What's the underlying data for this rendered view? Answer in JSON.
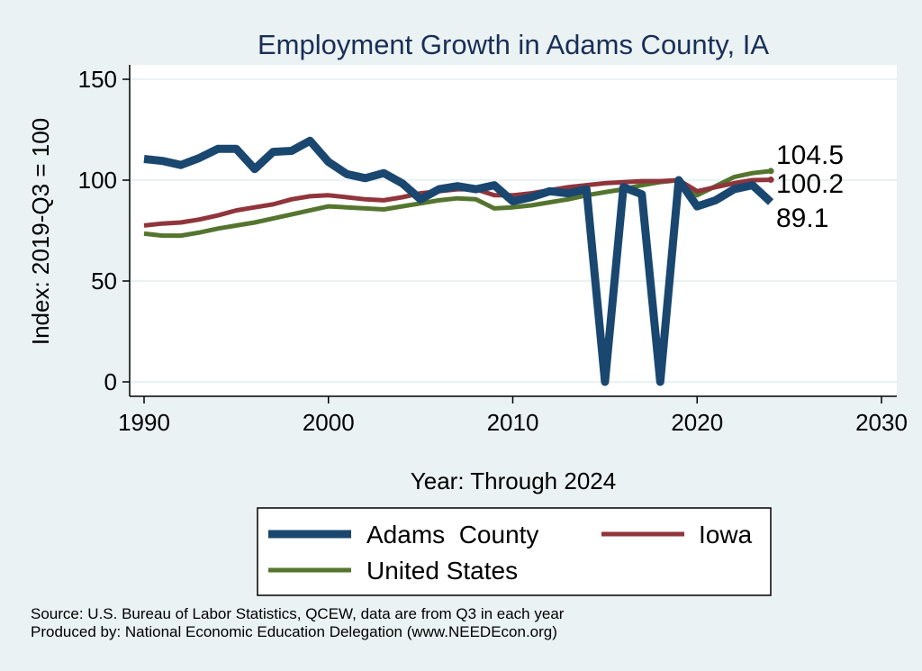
{
  "chart_data": {
    "type": "line",
    "title": "Employment Growth in Adams County, IA",
    "xlabel": "Year: Through 2024",
    "ylabel": "Index: 2019-Q3 = 100",
    "xlim": [
      1990,
      2030
    ],
    "ylim": [
      0,
      150
    ],
    "x_ticks": [
      1990,
      2000,
      2010,
      2020,
      2030
    ],
    "y_ticks": [
      0,
      50,
      100,
      150
    ],
    "grid": true,
    "legend_position": "bottom",
    "x": [
      1990,
      1991,
      1992,
      1993,
      1994,
      1995,
      1996,
      1997,
      1998,
      1999,
      2000,
      2001,
      2002,
      2003,
      2004,
      2005,
      2006,
      2007,
      2008,
      2009,
      2010,
      2011,
      2012,
      2013,
      2014,
      2015,
      2016,
      2017,
      2018,
      2019,
      2020,
      2021,
      2022,
      2023,
      2024
    ],
    "series": [
      {
        "name": "Adams  County",
        "color": "#1a476f",
        "values": [
          110.5,
          109.5,
          107.5,
          111,
          115.5,
          115.5,
          105.5,
          114,
          114.5,
          119.5,
          109,
          103,
          101,
          103.5,
          98.5,
          90.5,
          95.5,
          97,
          95.5,
          97.5,
          89.5,
          91.5,
          94.5,
          93.5,
          95.5,
          0,
          96.5,
          93,
          0,
          100,
          87,
          90,
          95.5,
          97.5,
          89.1
        ],
        "end_label": "89.1"
      },
      {
        "name": "Iowa",
        "color": "#90353b",
        "values": [
          77.5,
          78.5,
          79,
          80.5,
          82.5,
          85,
          86.5,
          88,
          90.5,
          92,
          92.5,
          91.5,
          90.5,
          90,
          91.5,
          93.5,
          94.5,
          95.5,
          95.5,
          92.5,
          92.5,
          93.5,
          95,
          96.5,
          97.5,
          98.5,
          99,
          99.5,
          99.5,
          100,
          94.5,
          96.5,
          98.5,
          100,
          100.2
        ],
        "end_label": "100.2"
      },
      {
        "name": "United States",
        "color": "#55752f",
        "values": [
          73.5,
          72.5,
          72.5,
          74,
          76,
          77.5,
          79,
          81,
          83,
          85,
          87,
          86.5,
          86,
          85.5,
          87,
          88.5,
          90,
          91,
          90.5,
          86,
          86.5,
          87.5,
          89,
          90.5,
          92.5,
          94,
          95.5,
          97.5,
          99,
          100,
          92.5,
          97,
          101.5,
          103.5,
          104.5
        ],
        "end_label": "104.5"
      }
    ]
  },
  "legend": {
    "items": [
      "Adams  County",
      "Iowa",
      "United States"
    ]
  },
  "footer": {
    "source": "Source: U.S. Bureau of Labor Statistics, QCEW, data are from Q3 in each year",
    "produced": "Produced by: National Economic Education Delegation (www.NEEDEcon.org)"
  }
}
